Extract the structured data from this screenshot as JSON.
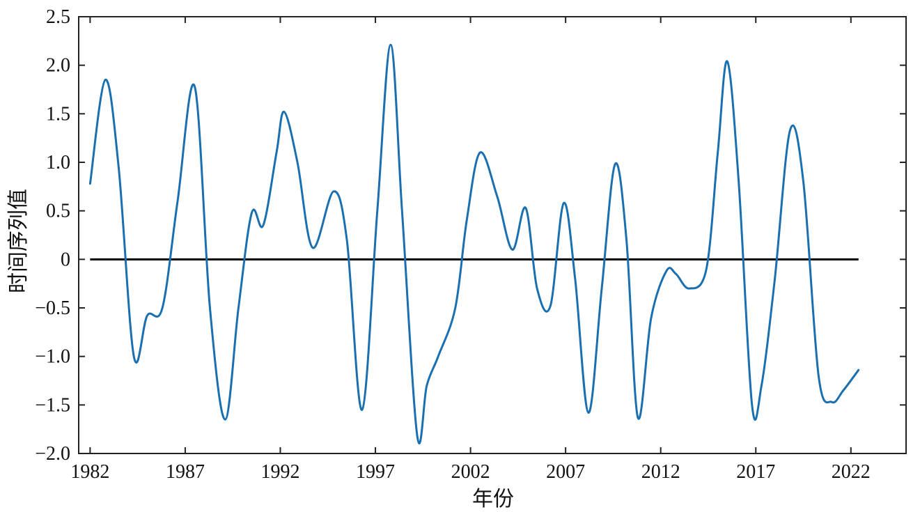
{
  "chart_data": {
    "type": "line",
    "title": "",
    "xlabel": "年份",
    "ylabel": "时间序列值",
    "xlim": [
      1981.4,
      2024.9
    ],
    "ylim": [
      -2.0,
      2.5
    ],
    "grid": false,
    "legend": "none",
    "x_ticks": [
      1982,
      1987,
      1992,
      1997,
      2002,
      2007,
      2012,
      2017,
      2022
    ],
    "x_tick_labels": [
      "1982",
      "1987",
      "1992",
      "1997",
      "2002",
      "2007",
      "2012",
      "2017",
      "2022"
    ],
    "y_ticks": [
      2.5,
      2.0,
      1.5,
      1.0,
      0.5,
      0,
      -0.5,
      -1.0,
      -1.5,
      -2.0
    ],
    "y_tick_labels": [
      "2.5",
      "2.0",
      "1.5",
      "1.0",
      "0.5",
      "0",
      "−0.5",
      "−1.0",
      "−1.5",
      "−2.0"
    ],
    "reference_line": {
      "y": 0,
      "color": "#000000"
    },
    "series": [
      {
        "color": "#1a6fb0",
        "x": [
          1982.0,
          1982.8,
          1983.5,
          1984.3,
          1985.0,
          1985.8,
          1986.6,
          1987.5,
          1988.3,
          1989.1,
          1989.8,
          1990.5,
          1991.1,
          1991.8,
          1992.2,
          1992.9,
          1993.7,
          1994.8,
          1995.5,
          1996.3,
          1997.1,
          1997.8,
          1998.4,
          1999.2,
          1999.7,
          2000.3,
          2001.2,
          2001.8,
          2002.5,
          2003.4,
          2004.2,
          2004.9,
          2005.5,
          2006.2,
          2006.9,
          2007.5,
          2008.2,
          2008.9,
          2009.6,
          2010.2,
          2010.8,
          2011.5,
          2012.3,
          2012.8,
          2013.5,
          2014.4,
          2015.0,
          2015.5,
          2016.1,
          2016.8,
          2017.3,
          2018.0,
          2018.8,
          2019.5,
          2020.3,
          2021.0,
          2021.6,
          2022.4
        ],
        "values": [
          0.78,
          1.85,
          0.95,
          -1.0,
          -0.58,
          -0.5,
          0.6,
          1.78,
          -0.5,
          -1.65,
          -0.5,
          0.48,
          0.35,
          1.1,
          1.52,
          1.0,
          0.12,
          0.7,
          0.2,
          -1.55,
          0.5,
          2.21,
          0.5,
          -1.82,
          -1.3,
          -1.0,
          -0.5,
          0.4,
          1.1,
          0.65,
          0.1,
          0.53,
          -0.3,
          -0.48,
          0.58,
          -0.2,
          -1.58,
          -0.3,
          0.98,
          0.2,
          -1.63,
          -0.6,
          -0.12,
          -0.15,
          -0.3,
          -0.1,
          1.1,
          2.04,
          0.8,
          -1.5,
          -1.3,
          -0.2,
          1.33,
          0.8,
          -1.2,
          -1.47,
          -1.35,
          -1.14
        ]
      }
    ]
  }
}
